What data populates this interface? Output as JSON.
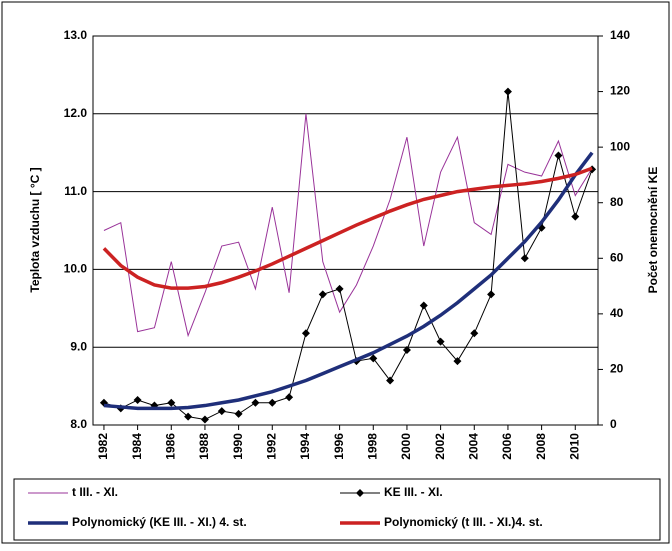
{
  "chart_data": {
    "type": "line",
    "y_label": "Teplota vzduchu [ °C ]",
    "y2_label": "Počet onemocnění KE",
    "x": [
      1982,
      1983,
      1984,
      1985,
      1986,
      1987,
      1988,
      1989,
      1990,
      1991,
      1992,
      1993,
      1994,
      1995,
      1996,
      1997,
      1998,
      1999,
      2000,
      2001,
      2002,
      2003,
      2004,
      2005,
      2006,
      2007,
      2008,
      2009,
      2010,
      2011
    ],
    "xlim": [
      1981.35,
      2011.35
    ],
    "xticks": [
      1982,
      1984,
      1986,
      1988,
      1990,
      1992,
      1994,
      1996,
      1998,
      2000,
      2002,
      2004,
      2006,
      2008,
      2010
    ],
    "ylim": [
      8,
      13
    ],
    "yticks": [
      {
        "value": 8,
        "label": "8.0"
      },
      {
        "value": 9,
        "label": "9.0"
      },
      {
        "value": 10,
        "label": "10.0"
      },
      {
        "value": 11,
        "label": "11.0"
      },
      {
        "value": 12,
        "label": "12.0"
      },
      {
        "value": 13,
        "label": "13.0"
      }
    ],
    "y2lim": [
      0,
      140
    ],
    "y2ticks": [
      0,
      20,
      40,
      60,
      80,
      100,
      120,
      140
    ],
    "grid": true,
    "series": [
      {
        "name": "t III. - XI.",
        "color": "#993399",
        "width": 1,
        "values": [
          10.5,
          10.6,
          9.2,
          9.25,
          10.1,
          9.15,
          9.7,
          10.3,
          10.35,
          9.75,
          10.8,
          9.7,
          12.0,
          10.1,
          9.45,
          9.8,
          10.3,
          10.9,
          11.7,
          10.3,
          11.25,
          11.7,
          10.6,
          10.45,
          11.35,
          11.25,
          11.2,
          11.65,
          10.95,
          11.3
        ]
      },
      {
        "name": "KE III. - XI.",
        "color": "#000000",
        "width": 1,
        "marker": true,
        "axis": "y2",
        "values": [
          8,
          6,
          9,
          7,
          8,
          3,
          2,
          5,
          4,
          8,
          8,
          10,
          33,
          47,
          49,
          23,
          24,
          16,
          27,
          43,
          30,
          23,
          33,
          47,
          120,
          60,
          71,
          97,
          75,
          92
        ]
      },
      {
        "name": "Polynomický (KE III. - XI.) 4. st.",
        "color": "#1f2f7a",
        "width": 3.5,
        "axis": "y2",
        "values": [
          7,
          6.5,
          6,
          6,
          6,
          6.3,
          7,
          8,
          9,
          10.5,
          12,
          14,
          16,
          18.5,
          21,
          23.5,
          26,
          29,
          32,
          35.5,
          39.5,
          44,
          49,
          54,
          60,
          66,
          73,
          81,
          90,
          98
        ]
      },
      {
        "name": "Polynomický (t III. - XI.)4. st.",
        "color": "#cc2222",
        "width": 3.5,
        "values": [
          10.27,
          10.05,
          9.9,
          9.8,
          9.76,
          9.76,
          9.78,
          9.83,
          9.9,
          9.98,
          10.07,
          10.17,
          10.27,
          10.37,
          10.47,
          10.57,
          10.66,
          10.75,
          10.83,
          10.9,
          10.95,
          11.0,
          11.03,
          11.06,
          11.08,
          11.1,
          11.13,
          11.17,
          11.22,
          11.3
        ]
      }
    ]
  }
}
